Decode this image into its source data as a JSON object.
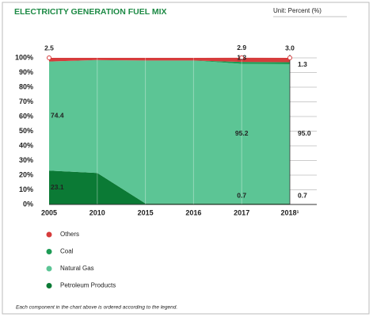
{
  "chart_data": {
    "type": "stacked_area",
    "title": "ELECTRICITY GENERATION FUEL MIX",
    "subtitle": "Unit: Percent (%)",
    "footnote": "Each component in the chart above is ordered according to the legend.",
    "categories": [
      "2005",
      "2010",
      "2015",
      "2016",
      "2017",
      "2018¹"
    ],
    "series": [
      {
        "name": "Others",
        "color": "#d63c3c",
        "values": [
          2.5,
          1.5,
          1.8,
          1.8,
          2.9,
          3.0
        ],
        "value_labels": [
          "2.5",
          null,
          null,
          null,
          "2.9",
          "3.0"
        ]
      },
      {
        "name": "Coal",
        "color": "#1d9b55",
        "values": [
          0,
          0,
          0,
          0,
          1.3,
          1.3
        ],
        "value_labels": [
          null,
          null,
          null,
          null,
          "1.3",
          "1.3"
        ]
      },
      {
        "name": "Natural Gas",
        "color": "#5cc595",
        "values": [
          74.4,
          77,
          97.5,
          97.5,
          95.2,
          95.0
        ],
        "value_labels": [
          "74.4",
          null,
          null,
          null,
          "95.2",
          "95.0"
        ]
      },
      {
        "name": "Petroleum Products",
        "color": "#0b7a35",
        "values": [
          23.1,
          21.5,
          0.7,
          0.7,
          0.7,
          0.7
        ],
        "value_labels": [
          "23.1",
          null,
          null,
          null,
          "0.7",
          "0.7"
        ]
      }
    ],
    "ylim": [
      0,
      100
    ],
    "yticks": [
      {
        "value": 0,
        "label": "0%"
      },
      {
        "value": 10,
        "label": "10%"
      },
      {
        "value": 20,
        "label": "20%"
      },
      {
        "value": 30,
        "label": "30%"
      },
      {
        "value": 40,
        "label": "40%"
      },
      {
        "value": 50,
        "label": "50%"
      },
      {
        "value": 60,
        "label": "60%"
      },
      {
        "value": 70,
        "label": "70%"
      },
      {
        "value": 80,
        "label": "80%"
      },
      {
        "value": 90,
        "label": "90%"
      },
      {
        "value": 100,
        "label": "100%"
      }
    ],
    "grid": true
  }
}
